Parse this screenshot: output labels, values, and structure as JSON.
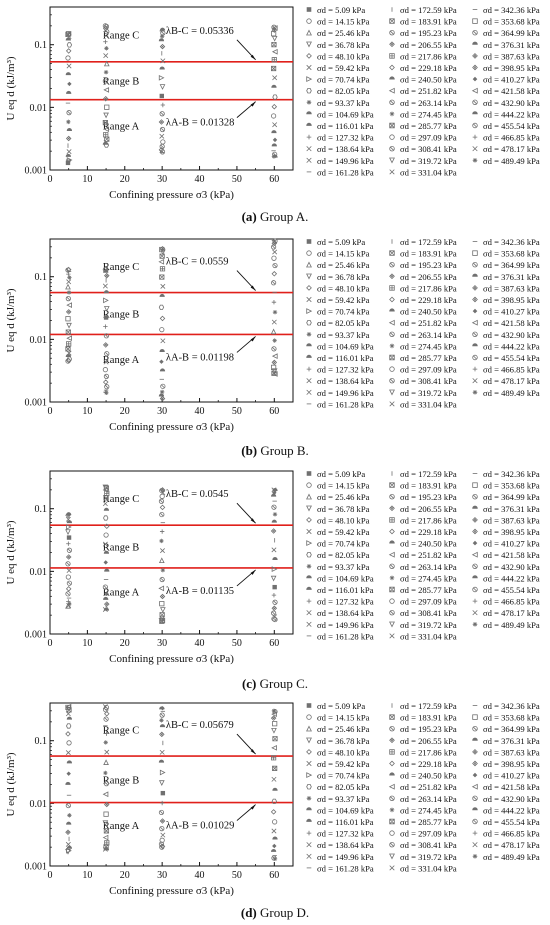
{
  "colors": {
    "threshold_line": "#e0201b",
    "axis": "#111111",
    "marker": "#707070"
  },
  "legend_entries": [
    "5.09 kPa",
    "14.15 kPa",
    "25.46 kPa",
    "36.78 kPa",
    "48.10 kPa",
    "59.42 kPa",
    "70.74 kPa",
    "82.05 kPa",
    "93.37 kPa",
    "104.69 kPa",
    "116.01 kPa",
    "127.32 kPa",
    "138.64 kPa",
    "149.96 kPa",
    "161.28 kPa",
    "172.59 kPa",
    "183.91 kPa",
    "195.23 kPa",
    "206.55 kPa",
    "217.86 kPa",
    "229.18 kPa",
    "240.50 kPa",
    "251.82 kPa",
    "263.14 kPa",
    "274.45 kPa",
    "285.77 kPa",
    "297.09 kPa",
    "308.41 kPa",
    "319.72 kPa",
    "331.04 kPa",
    "342.36 kPa",
    "353.68 kPa",
    "364.99 kPa",
    "376.31 kPa",
    "387.63 kPa",
    "398.95 kPa",
    "410.27 kPa",
    "421.58 kPa",
    "432.90 kPa",
    "444.22 kPa",
    "455.54 kPa",
    "466.85 kPa",
    "478.17 kPa",
    "489.49 kPa"
  ],
  "legend_marker_icons": [
    "filled-square",
    "circle",
    "triangle-up",
    "triangle-down",
    "diamond",
    "x-cross",
    "triangle-right",
    "hexagon",
    "star",
    "half-circle",
    "half-circle",
    "plus",
    "x-cross",
    "x-cross",
    "dash",
    "bar",
    "square-x",
    "circle-x",
    "diamond-x",
    "square-cross",
    "diamond",
    "half-circle",
    "triangle-left",
    "circle-split",
    "star",
    "square-x",
    "circle",
    "circle-x",
    "triangle-down",
    "x-cross",
    "dash",
    "square",
    "circle-x",
    "circle-half",
    "diamond-x",
    "diamond-x",
    "diamond-filled",
    "triangle-left",
    "circle-split",
    "circle-half",
    "circle-x",
    "plus",
    "x-cross",
    "asterisk"
  ],
  "legend_symbol": "σd =",
  "chart_data": [
    {
      "caption_label": "(a)",
      "caption_text": " Group A.",
      "type": "scatter",
      "xlabel": "Confining pressure σ3 (kPa)",
      "ylabel": "U eq d (kJ/m³)",
      "xlim": [
        0,
        65
      ],
      "xticks": [
        "0",
        "10",
        "20",
        "30",
        "40",
        "50",
        "60"
      ],
      "ylim": [
        0.001,
        0.4
      ],
      "yscale": "log",
      "yticks": [
        "0.001",
        "0.01",
        "0.1"
      ],
      "thresholds": [
        0.05336,
        0.01328
      ],
      "ranges": [
        "Range C",
        "Range B",
        "Range A"
      ],
      "annotation_upper": "λB-C = 0.05336",
      "annotation_lower": "λA-B = 0.01328",
      "x": [
        5,
        15,
        30,
        60
      ],
      "series_min": [
        0.0013,
        0.0025,
        0.0019,
        0.0016
      ],
      "series_max": [
        0.15,
        0.2,
        0.17,
        0.19
      ],
      "markers_per_column": 22
    },
    {
      "caption_label": "(b)",
      "caption_text": " Group B.",
      "type": "scatter",
      "xlabel": "Confining pressure σ3 (kPa)",
      "ylabel": "U eq d (kJ/m³)",
      "xlim": [
        0,
        65
      ],
      "xticks": [
        "0",
        "10",
        "20",
        "30",
        "40",
        "50",
        "60"
      ],
      "ylim": [
        0.001,
        0.4
      ],
      "yscale": "log",
      "yticks": [
        "0.001",
        "0.01",
        "0.1"
      ],
      "thresholds": [
        0.0559,
        0.01198
      ],
      "ranges": [
        "Range C",
        "Range B",
        "Range A"
      ],
      "annotation_upper": "λB-C = 0.0559",
      "annotation_lower": "λA-B = 0.01198",
      "x": [
        5,
        15,
        30,
        60
      ],
      "series_min": [
        0.0045,
        0.0014,
        0.0011,
        0.0028
      ],
      "series_max": [
        0.13,
        0.13,
        0.28,
        0.38
      ],
      "markers_per_column": 22
    },
    {
      "caption_label": "(c)",
      "caption_text": " Group C.",
      "type": "scatter",
      "xlabel": "Confining pressure σ3 (kPa)",
      "ylabel": "U eq d (kJ/m³)",
      "xlim": [
        0,
        65
      ],
      "xticks": [
        "0",
        "10",
        "20",
        "30",
        "40",
        "50",
        "60"
      ],
      "ylim": [
        0.001,
        0.4
      ],
      "yscale": "log",
      "yticks": [
        "0.001",
        "0.01",
        "0.1"
      ],
      "thresholds": [
        0.0545,
        0.01135
      ],
      "ranges": [
        "Range C",
        "Range B",
        "Range A"
      ],
      "annotation_upper": "λB-C = 0.0545",
      "annotation_lower": "λA-B = 0.01135",
      "x": [
        5,
        15,
        30,
        60
      ],
      "series_min": [
        0.0028,
        0.0024,
        0.0016,
        0.0017
      ],
      "series_max": [
        0.08,
        0.22,
        0.2,
        0.2
      ],
      "markers_per_column": 22
    },
    {
      "caption_label": "(d)",
      "caption_text": " Group D.",
      "type": "scatter",
      "xlabel": "Confining pressure σ3 (kPa)",
      "ylabel": "U eq d (kJ/m³)",
      "xlim": [
        0,
        65
      ],
      "xticks": [
        "0",
        "10",
        "20",
        "30",
        "40",
        "50",
        "60"
      ],
      "ylim": [
        0.001,
        0.4
      ],
      "yscale": "log",
      "yticks": [
        "0.001",
        "0.01",
        "0.1"
      ],
      "thresholds": [
        0.05679,
        0.01029
      ],
      "ranges": [
        "Range C",
        "Range B",
        "Range A"
      ],
      "annotation_upper": "λB-C = 0.05679",
      "annotation_lower": "λA-B = 0.01029",
      "x": [
        5,
        15,
        30,
        60
      ],
      "series_min": [
        0.0017,
        0.0018,
        0.002,
        0.0013
      ],
      "series_max": [
        0.35,
        0.35,
        0.33,
        0.3
      ],
      "markers_per_column": 22
    }
  ]
}
